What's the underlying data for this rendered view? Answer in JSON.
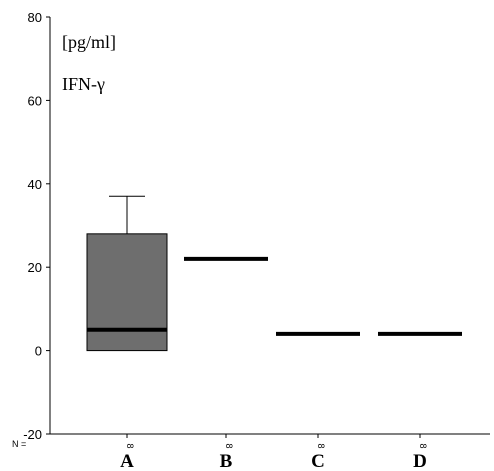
{
  "chart_data": {
    "type": "box",
    "ylim": [
      -20,
      80
    ],
    "yticks": [
      -20,
      0,
      20,
      40,
      60,
      80
    ],
    "unit_label": "[pg/ml]",
    "series_label": "IFN-γ",
    "n_label": "N =",
    "grid": false,
    "categories": [
      "A",
      "B",
      "C",
      "D"
    ],
    "n": [
      "8",
      "8",
      "8",
      "8"
    ],
    "boxes": [
      {
        "category": "A",
        "min": 0,
        "q1": 0,
        "median": 5,
        "q3": 28,
        "max": 37
      },
      {
        "category": "B",
        "min": 22,
        "q1": 22,
        "median": 22,
        "q3": 22,
        "max": 22
      },
      {
        "category": "C",
        "min": 4,
        "q1": 4,
        "median": 4,
        "q3": 4,
        "max": 4
      },
      {
        "category": "D",
        "min": 4,
        "q1": 4,
        "median": 4,
        "q3": 4,
        "max": 4
      }
    ],
    "colors": {
      "box_fill": "#6e6e6e",
      "line": "#000000"
    }
  }
}
